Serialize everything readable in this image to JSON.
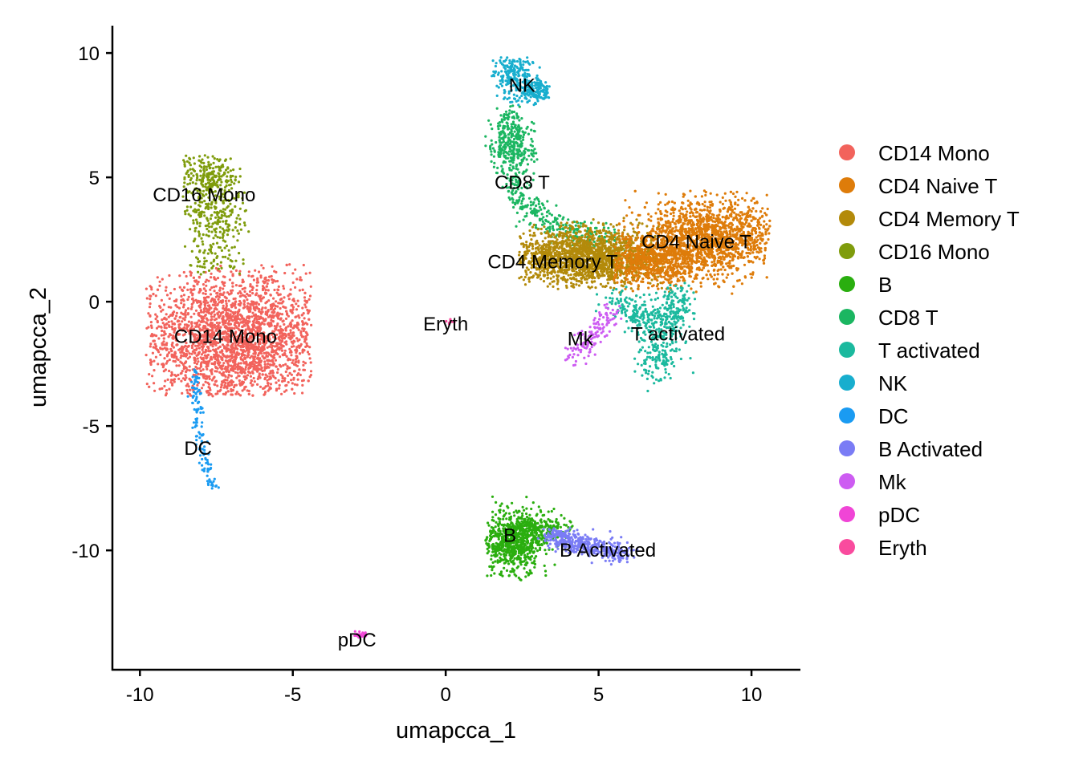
{
  "chart_data": {
    "type": "scatter",
    "title": "",
    "xlabel": "umapcca_1",
    "ylabel": "umapcca_2",
    "xlim": [
      -10.9,
      11.6
    ],
    "ylim": [
      -14.8,
      11.1
    ],
    "x_ticks": [
      -10,
      -5,
      0,
      5,
      10
    ],
    "y_ticks": [
      -10,
      -5,
      0,
      5,
      10
    ],
    "x_tick_labels": [
      "-10",
      "-5",
      "0",
      "5",
      "10"
    ],
    "y_tick_labels": [
      "-10",
      "-5",
      "0",
      "5",
      "10"
    ],
    "grid": false,
    "legend_position": "right",
    "legend": [
      {
        "name": "CD14 Mono",
        "color": "#F8766D"
      },
      {
        "name": "CD4 Naive T",
        "color": "#DE8C00"
      },
      {
        "name": "CD4 Memory T",
        "color": "#B79F00"
      },
      {
        "name": "CD16 Mono",
        "color": "#7CAE00"
      },
      {
        "name": "B",
        "color": "#00BA38"
      },
      {
        "name": "CD8 T",
        "color": "#00C08B"
      },
      {
        "name": "T activated",
        "color": "#00BFC4"
      },
      {
        "name": "NK",
        "color": "#00B4F0"
      },
      {
        "name": "DC",
        "color": "#619CFF"
      },
      {
        "name": "B Activated",
        "color": "#C77CFF"
      },
      {
        "name": "Mk",
        "color": "#F564E3"
      },
      {
        "name": "pDC",
        "color": "#FF64B0"
      },
      {
        "name": "Eryth",
        "color": "#FF61C3"
      }
    ],
    "legend_colors_rendered": {
      "CD14 Mono": "#F2635C",
      "CD4 Naive T": "#DE7C0A",
      "CD4 Memory T": "#B38A0A",
      "CD16 Mono": "#7F9C0C",
      "B": "#2AAE0F",
      "CD8 T": "#1BB661",
      "T activated": "#1BB99E",
      "NK": "#18AECE",
      "DC": "#1A9BF2",
      "B Activated": "#7A7CF5",
      "Mk": "#CD5CF2",
      "pDC": "#F045D6",
      "Eryth": "#F94B9E"
    },
    "cluster_labels": [
      {
        "name": "CD14 Mono",
        "x": -7.2,
        "y": -1.4
      },
      {
        "name": "CD4 Naive T",
        "x": 8.2,
        "y": 2.4
      },
      {
        "name": "CD4 Memory T",
        "x": 3.5,
        "y": 1.6
      },
      {
        "name": "CD16 Mono",
        "x": -7.9,
        "y": 4.3
      },
      {
        "name": "B",
        "x": 2.1,
        "y": -9.4
      },
      {
        "name": "CD8 T",
        "x": 2.5,
        "y": 4.8
      },
      {
        "name": "T activated",
        "x": 7.6,
        "y": -1.3
      },
      {
        "name": "NK",
        "x": 2.5,
        "y": 8.7
      },
      {
        "name": "DC",
        "x": -8.1,
        "y": -5.9
      },
      {
        "name": "B Activated",
        "x": 5.3,
        "y": -10.0
      },
      {
        "name": "Mk",
        "x": 4.4,
        "y": -1.5
      },
      {
        "name": "pDC",
        "x": -2.9,
        "y": -13.6
      },
      {
        "name": "Eryth",
        "x": 0.0,
        "y": -0.9
      }
    ],
    "clusters": [
      {
        "name": "CD14 Mono",
        "n": 2600,
        "shape": [
          {
            "cx": -6.8,
            "cy": -1.5,
            "sx": 1.55,
            "sy": 1.35,
            "w": 1
          }
        ],
        "xr": [
          -9.8,
          -4.4
        ],
        "yr": [
          -3.8,
          1.5
        ]
      },
      {
        "name": "CD16 Mono",
        "n": 520,
        "shape": [
          {
            "cx": -7.8,
            "cy": 5.0,
            "sx": 0.45,
            "sy": 0.5,
            "w": 0.45
          },
          {
            "cx": -7.5,
            "cy": 3.4,
            "sx": 0.5,
            "sy": 0.8,
            "w": 0.45
          },
          {
            "cx": -7.6,
            "cy": 1.8,
            "sx": 0.5,
            "sy": 0.4,
            "w": 0.1
          }
        ],
        "xr": [
          -8.6,
          -6.4
        ],
        "yr": [
          1.1,
          5.9
        ]
      },
      {
        "name": "DC",
        "n": 130,
        "shape": [
          {
            "path": [
              [
                -8.2,
                -2.7
              ],
              [
                -8.1,
                -4.5
              ],
              [
                -8.0,
                -5.7
              ],
              [
                -7.8,
                -6.7
              ],
              [
                -7.6,
                -7.6
              ]
            ],
            "s": 0.1
          }
        ]
      },
      {
        "name": "NK",
        "n": 380,
        "shape": [
          {
            "cx": 2.2,
            "cy": 9.1,
            "sx": 0.35,
            "sy": 0.45,
            "w": 0.5
          },
          {
            "cx": 2.9,
            "cy": 8.5,
            "sx": 0.35,
            "sy": 0.25,
            "w": 0.5
          }
        ],
        "xr": [
          1.5,
          3.4
        ],
        "yr": [
          7.9,
          9.9
        ]
      },
      {
        "name": "CD8 T",
        "n": 650,
        "shape": [
          {
            "cx": 2.2,
            "cy": 6.2,
            "sx": 0.35,
            "sy": 0.55,
            "w": 0.4
          },
          {
            "path": [
              [
                2.1,
                7.6
              ],
              [
                2.2,
                6.9
              ]
            ],
            "s": 0.2,
            "w": 0.1
          },
          {
            "path": [
              [
                2.3,
                5.0
              ],
              [
                2.5,
                4.0
              ],
              [
                3.2,
                3.3
              ],
              [
                4.5,
                2.7
              ],
              [
                5.6,
                2.4
              ]
            ],
            "s": 0.28,
            "w": 0.5
          }
        ]
      },
      {
        "name": "CD4 Memory T",
        "n": 1700,
        "shape": [
          {
            "cx": 4.6,
            "cy": 1.8,
            "sx": 1.25,
            "sy": 0.55,
            "w": 1
          }
        ],
        "xr": [
          2.4,
          7.2
        ],
        "yr": [
          0.5,
          3.4
        ]
      },
      {
        "name": "CD4 Naive T",
        "n": 2700,
        "shape": [
          {
            "cx": 8.6,
            "cy": 2.6,
            "sx": 1.2,
            "sy": 0.75,
            "w": 0.65
          },
          {
            "cx": 6.8,
            "cy": 1.6,
            "sx": 0.9,
            "sy": 0.5,
            "w": 0.35
          }
        ],
        "xr": [
          5.5,
          10.6
        ],
        "yr": [
          0.1,
          4.5
        ]
      },
      {
        "name": "T activated",
        "n": 520,
        "shape": [
          {
            "path": [
              [
                5.7,
                0.0
              ],
              [
                6.5,
                -0.6
              ],
              [
                7.1,
                -1.4
              ],
              [
                7.0,
                -2.4
              ],
              [
                6.9,
                -2.8
              ]
            ],
            "s": 0.35,
            "w": 0.7
          },
          {
            "path": [
              [
                7.6,
                0.3
              ],
              [
                7.4,
                -1.0
              ]
            ],
            "s": 0.3,
            "w": 0.3
          }
        ]
      },
      {
        "name": "Mk",
        "n": 140,
        "shape": [
          {
            "path": [
              [
                5.5,
                -0.3
              ],
              [
                5.0,
                -1.1
              ],
              [
                4.5,
                -1.8
              ],
              [
                4.0,
                -2.2
              ]
            ],
            "s": 0.18
          }
        ]
      },
      {
        "name": "B",
        "n": 900,
        "shape": [
          {
            "cx": 2.2,
            "cy": -9.7,
            "sx": 0.45,
            "sy": 0.65,
            "w": 0.7
          },
          {
            "cx": 2.9,
            "cy": -9.2,
            "sx": 0.55,
            "sy": 0.35,
            "w": 0.3
          }
        ],
        "xr": [
          1.3,
          4.2
        ],
        "yr": [
          -11.2,
          -7.7
        ]
      },
      {
        "name": "B Activated",
        "n": 420,
        "shape": [
          {
            "path": [
              [
                3.4,
                -9.4
              ],
              [
                4.3,
                -9.7
              ],
              [
                5.2,
                -10.0
              ],
              [
                5.9,
                -10.1
              ]
            ],
            "s": 0.2
          }
        ]
      },
      {
        "name": "pDC",
        "n": 30,
        "shape": [
          {
            "cx": -2.8,
            "cy": -13.4,
            "sx": 0.12,
            "sy": 0.06,
            "w": 1
          }
        ]
      },
      {
        "name": "Eryth",
        "n": 8,
        "shape": [
          {
            "cx": 0.1,
            "cy": -0.8,
            "sx": 0.1,
            "sy": 0.05,
            "w": 1
          }
        ]
      }
    ]
  }
}
